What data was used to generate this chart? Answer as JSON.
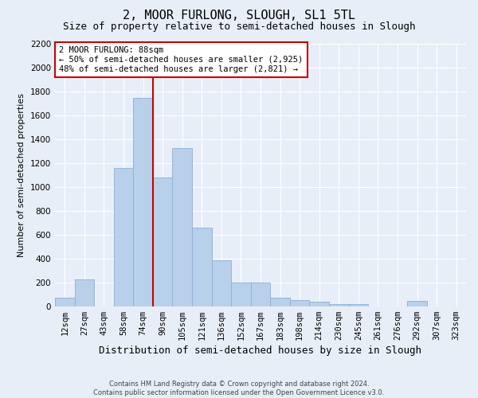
{
  "title": "2, MOOR FURLONG, SLOUGH, SL1 5TL",
  "subtitle": "Size of property relative to semi-detached houses in Slough",
  "xlabel": "Distribution of semi-detached houses by size in Slough",
  "ylabel": "Number of semi-detached properties",
  "categories": [
    "12sqm",
    "27sqm",
    "43sqm",
    "58sqm",
    "74sqm",
    "90sqm",
    "105sqm",
    "121sqm",
    "136sqm",
    "152sqm",
    "167sqm",
    "183sqm",
    "198sqm",
    "214sqm",
    "230sqm",
    "245sqm",
    "261sqm",
    "276sqm",
    "292sqm",
    "307sqm",
    "323sqm"
  ],
  "values": [
    75,
    230,
    0,
    1160,
    1750,
    1080,
    1330,
    660,
    390,
    200,
    200,
    75,
    55,
    40,
    20,
    20,
    0,
    0,
    50,
    0,
    0
  ],
  "bar_color": "#b8d0ea",
  "bar_edge_color": "#8ab0d8",
  "property_line_color": "#cc0000",
  "annotation_text": "2 MOOR FURLONG: 88sqm\n← 50% of semi-detached houses are smaller (2,925)\n48% of semi-detached houses are larger (2,821) →",
  "annotation_box_color": "#ffffff",
  "annotation_box_edge_color": "#cc0000",
  "ylim": [
    0,
    2200
  ],
  "yticks": [
    0,
    200,
    400,
    600,
    800,
    1000,
    1200,
    1400,
    1600,
    1800,
    2000,
    2200
  ],
  "footnote": "Contains HM Land Registry data © Crown copyright and database right 2024.\nContains public sector information licensed under the Open Government Licence v3.0.",
  "background_color": "#e8eef8",
  "grid_color": "#ffffff",
  "title_fontsize": 11,
  "subtitle_fontsize": 9,
  "tick_fontsize": 7.5,
  "ylabel_fontsize": 8,
  "xlabel_fontsize": 9,
  "annotation_fontsize": 7.5,
  "footnote_fontsize": 6
}
